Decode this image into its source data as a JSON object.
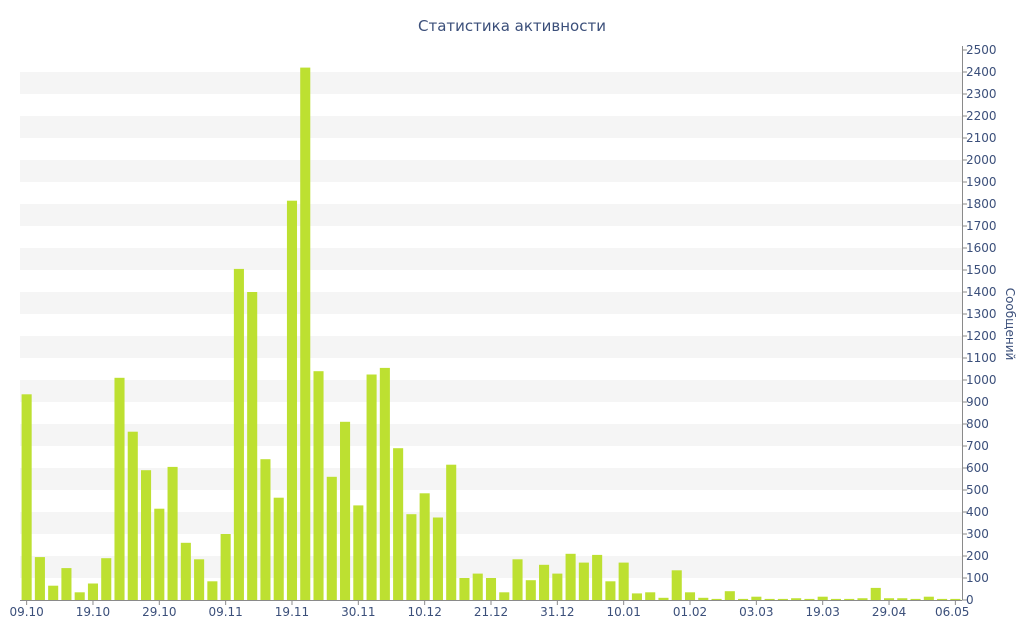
{
  "colors": {
    "bar": "#bde031",
    "band": "#f5f5f5",
    "text": "#3b4f7a",
    "axis": "#8a8a8a"
  },
  "chart_data": {
    "type": "bar",
    "title": "Статистика активности",
    "xlabel": "",
    "ylabel": "Сообщений",
    "y_axis_side": "right",
    "ylim": [
      0,
      2500
    ],
    "y_tick_step": 100,
    "grid": "alternating horizontal bands",
    "x_tick_labels": [
      {
        "index": 0,
        "label": "09.10"
      },
      {
        "index": 5,
        "label": "19.10"
      },
      {
        "index": 10,
        "label": "29.10"
      },
      {
        "index": 15,
        "label": "09.11"
      },
      {
        "index": 20,
        "label": "19.11"
      },
      {
        "index": 25,
        "label": "30.11"
      },
      {
        "index": 30,
        "label": "10.12"
      },
      {
        "index": 35,
        "label": "21.12"
      },
      {
        "index": 40,
        "label": "31.12"
      },
      {
        "index": 45,
        "label": "10.01"
      },
      {
        "index": 50,
        "label": "01.02"
      },
      {
        "index": 55,
        "label": "03.03"
      },
      {
        "index": 60,
        "label": "19.03"
      },
      {
        "index": 65,
        "label": "29.04"
      },
      {
        "index": 70,
        "label": "06.05"
      }
    ],
    "values": [
      935,
      195,
      65,
      145,
      35,
      75,
      190,
      1010,
      765,
      590,
      415,
      605,
      260,
      185,
      85,
      300,
      1505,
      1400,
      640,
      465,
      1815,
      2420,
      1040,
      560,
      810,
      430,
      1025,
      1055,
      690,
      390,
      485,
      375,
      615,
      100,
      120,
      100,
      35,
      185,
      90,
      160,
      120,
      210,
      170,
      205,
      85,
      170,
      30,
      35,
      10,
      135,
      35,
      10,
      5,
      40,
      5,
      15,
      5,
      5,
      8,
      5,
      15,
      5,
      5,
      8,
      55,
      8,
      8,
      5,
      15,
      5,
      5
    ]
  }
}
